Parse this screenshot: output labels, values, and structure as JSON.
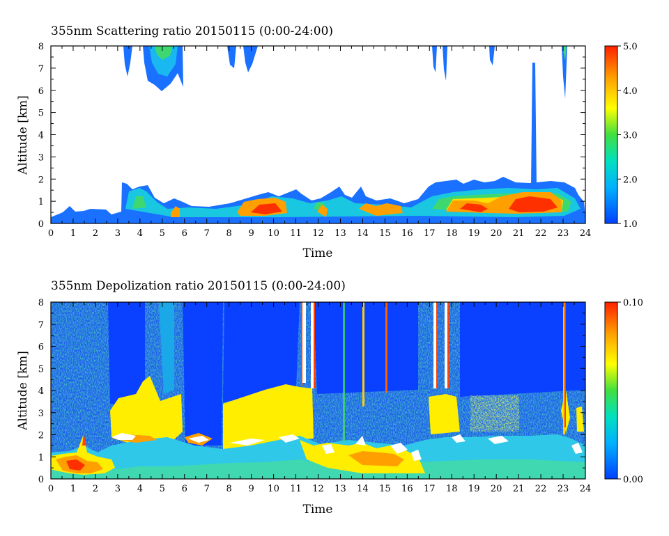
{
  "chart_data": [
    {
      "type": "heatmap",
      "title": "355nm Scattering ratio  20150115 (0:00-24:00)",
      "xlabel": "Time",
      "ylabel": "Altitude [km]",
      "xlim": [
        0,
        24
      ],
      "ylim": [
        0,
        8
      ],
      "x_ticks": [
        "0",
        "1",
        "2",
        "3",
        "4",
        "5",
        "6",
        "7",
        "8",
        "9",
        "10",
        "11",
        "12",
        "13",
        "14",
        "15",
        "16",
        "17",
        "18",
        "19",
        "20",
        "21",
        "22",
        "23",
        "24"
      ],
      "y_ticks": [
        "0",
        "1",
        "2",
        "3",
        "4",
        "5",
        "6",
        "7",
        "8"
      ],
      "colorbar": {
        "range": [
          1.0,
          5.0
        ],
        "ticks": [
          "1.0",
          "2.0",
          "3.0",
          "4.0",
          "5.0"
        ],
        "colors": [
          "#0040ff",
          "#00b0ff",
          "#00e0c0",
          "#40e040",
          "#ffff00",
          "#ffa000",
          "#ff2000"
        ]
      }
    },
    {
      "type": "heatmap",
      "title": "355nm Depolization ratio  20150115 (0:00-24:00)",
      "xlabel": "Time",
      "ylabel": "Altitude [km]",
      "xlim": [
        0,
        24
      ],
      "ylim": [
        0,
        8
      ],
      "x_ticks": [
        "0",
        "1",
        "2",
        "3",
        "4",
        "5",
        "6",
        "7",
        "8",
        "9",
        "10",
        "11",
        "12",
        "13",
        "14",
        "15",
        "16",
        "17",
        "18",
        "19",
        "20",
        "21",
        "22",
        "23",
        "24"
      ],
      "y_ticks": [
        "0",
        "1",
        "2",
        "3",
        "4",
        "5",
        "6",
        "7",
        "8"
      ],
      "colorbar": {
        "range": [
          0.0,
          0.1
        ],
        "ticks": [
          "0.00",
          "0.10"
        ],
        "colors": [
          "#0040ff",
          "#00b0ff",
          "#00e0c0",
          "#40e040",
          "#ffff00",
          "#ffa000",
          "#ff2000"
        ]
      }
    }
  ]
}
